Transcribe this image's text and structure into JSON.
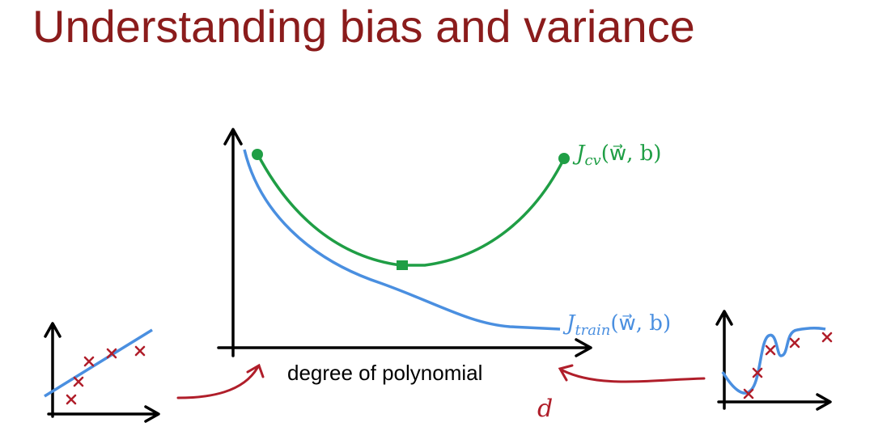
{
  "title": "Understanding bias and variance",
  "x_axis_label": "degree of polynomial",
  "x_variable": "d",
  "curves": [
    {
      "symbol": "J",
      "subscript": "cv",
      "args": "(w⃗, b)"
    },
    {
      "symbol": "J",
      "subscript": "train",
      "args": "(w⃗, b)"
    }
  ]
}
